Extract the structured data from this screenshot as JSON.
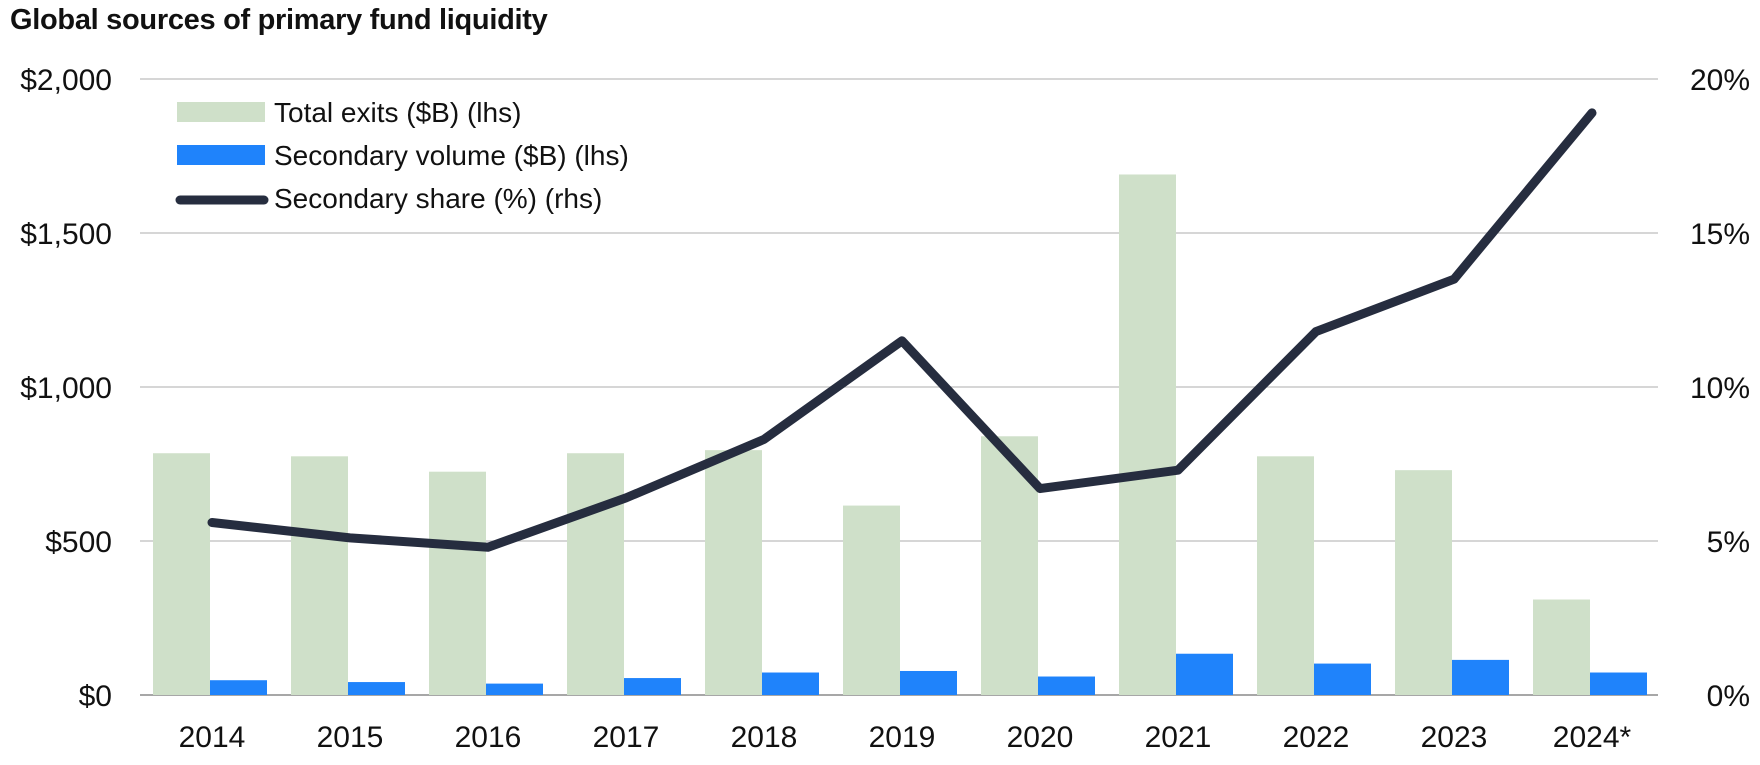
{
  "chart_data": {
    "type": "bar",
    "title": "Global sources of primary fund liquidity",
    "categories": [
      "2014",
      "2015",
      "2016",
      "2017",
      "2018",
      "2019",
      "2020",
      "2021",
      "2022",
      "2023",
      "2024*"
    ],
    "series": [
      {
        "name": "Total exits ($B) (lhs)",
        "kind": "bar",
        "axis": "left",
        "color": "#cfe0c9",
        "values": [
          785,
          775,
          725,
          785,
          795,
          615,
          840,
          1690,
          775,
          730,
          310
        ]
      },
      {
        "name": "Secondary volume ($B) (lhs)",
        "kind": "bar",
        "axis": "left",
        "color": "#1f83fb",
        "values": [
          48,
          42,
          37,
          55,
          73,
          78,
          60,
          134,
          102,
          114,
          73
        ]
      },
      {
        "name": "Secondary share (%) (rhs)",
        "kind": "line",
        "axis": "right",
        "color": "#262d3f",
        "values": [
          5.6,
          5.1,
          4.8,
          6.4,
          8.3,
          11.5,
          6.7,
          7.3,
          11.8,
          13.5,
          18.9
        ]
      }
    ],
    "y_left": {
      "min": 0,
      "max": 2000,
      "ticks": [
        0,
        500,
        1000,
        1500,
        2000
      ],
      "tick_labels": [
        "$0",
        "$500",
        "$1,000",
        "$1,500",
        "$2,000"
      ]
    },
    "y_right": {
      "min": 0,
      "max": 20,
      "ticks": [
        0,
        5,
        10,
        15,
        20
      ],
      "tick_labels": [
        "0%",
        "5%",
        "10%",
        "15%",
        "20%"
      ]
    },
    "grid": true,
    "legend_position": "top-left"
  }
}
